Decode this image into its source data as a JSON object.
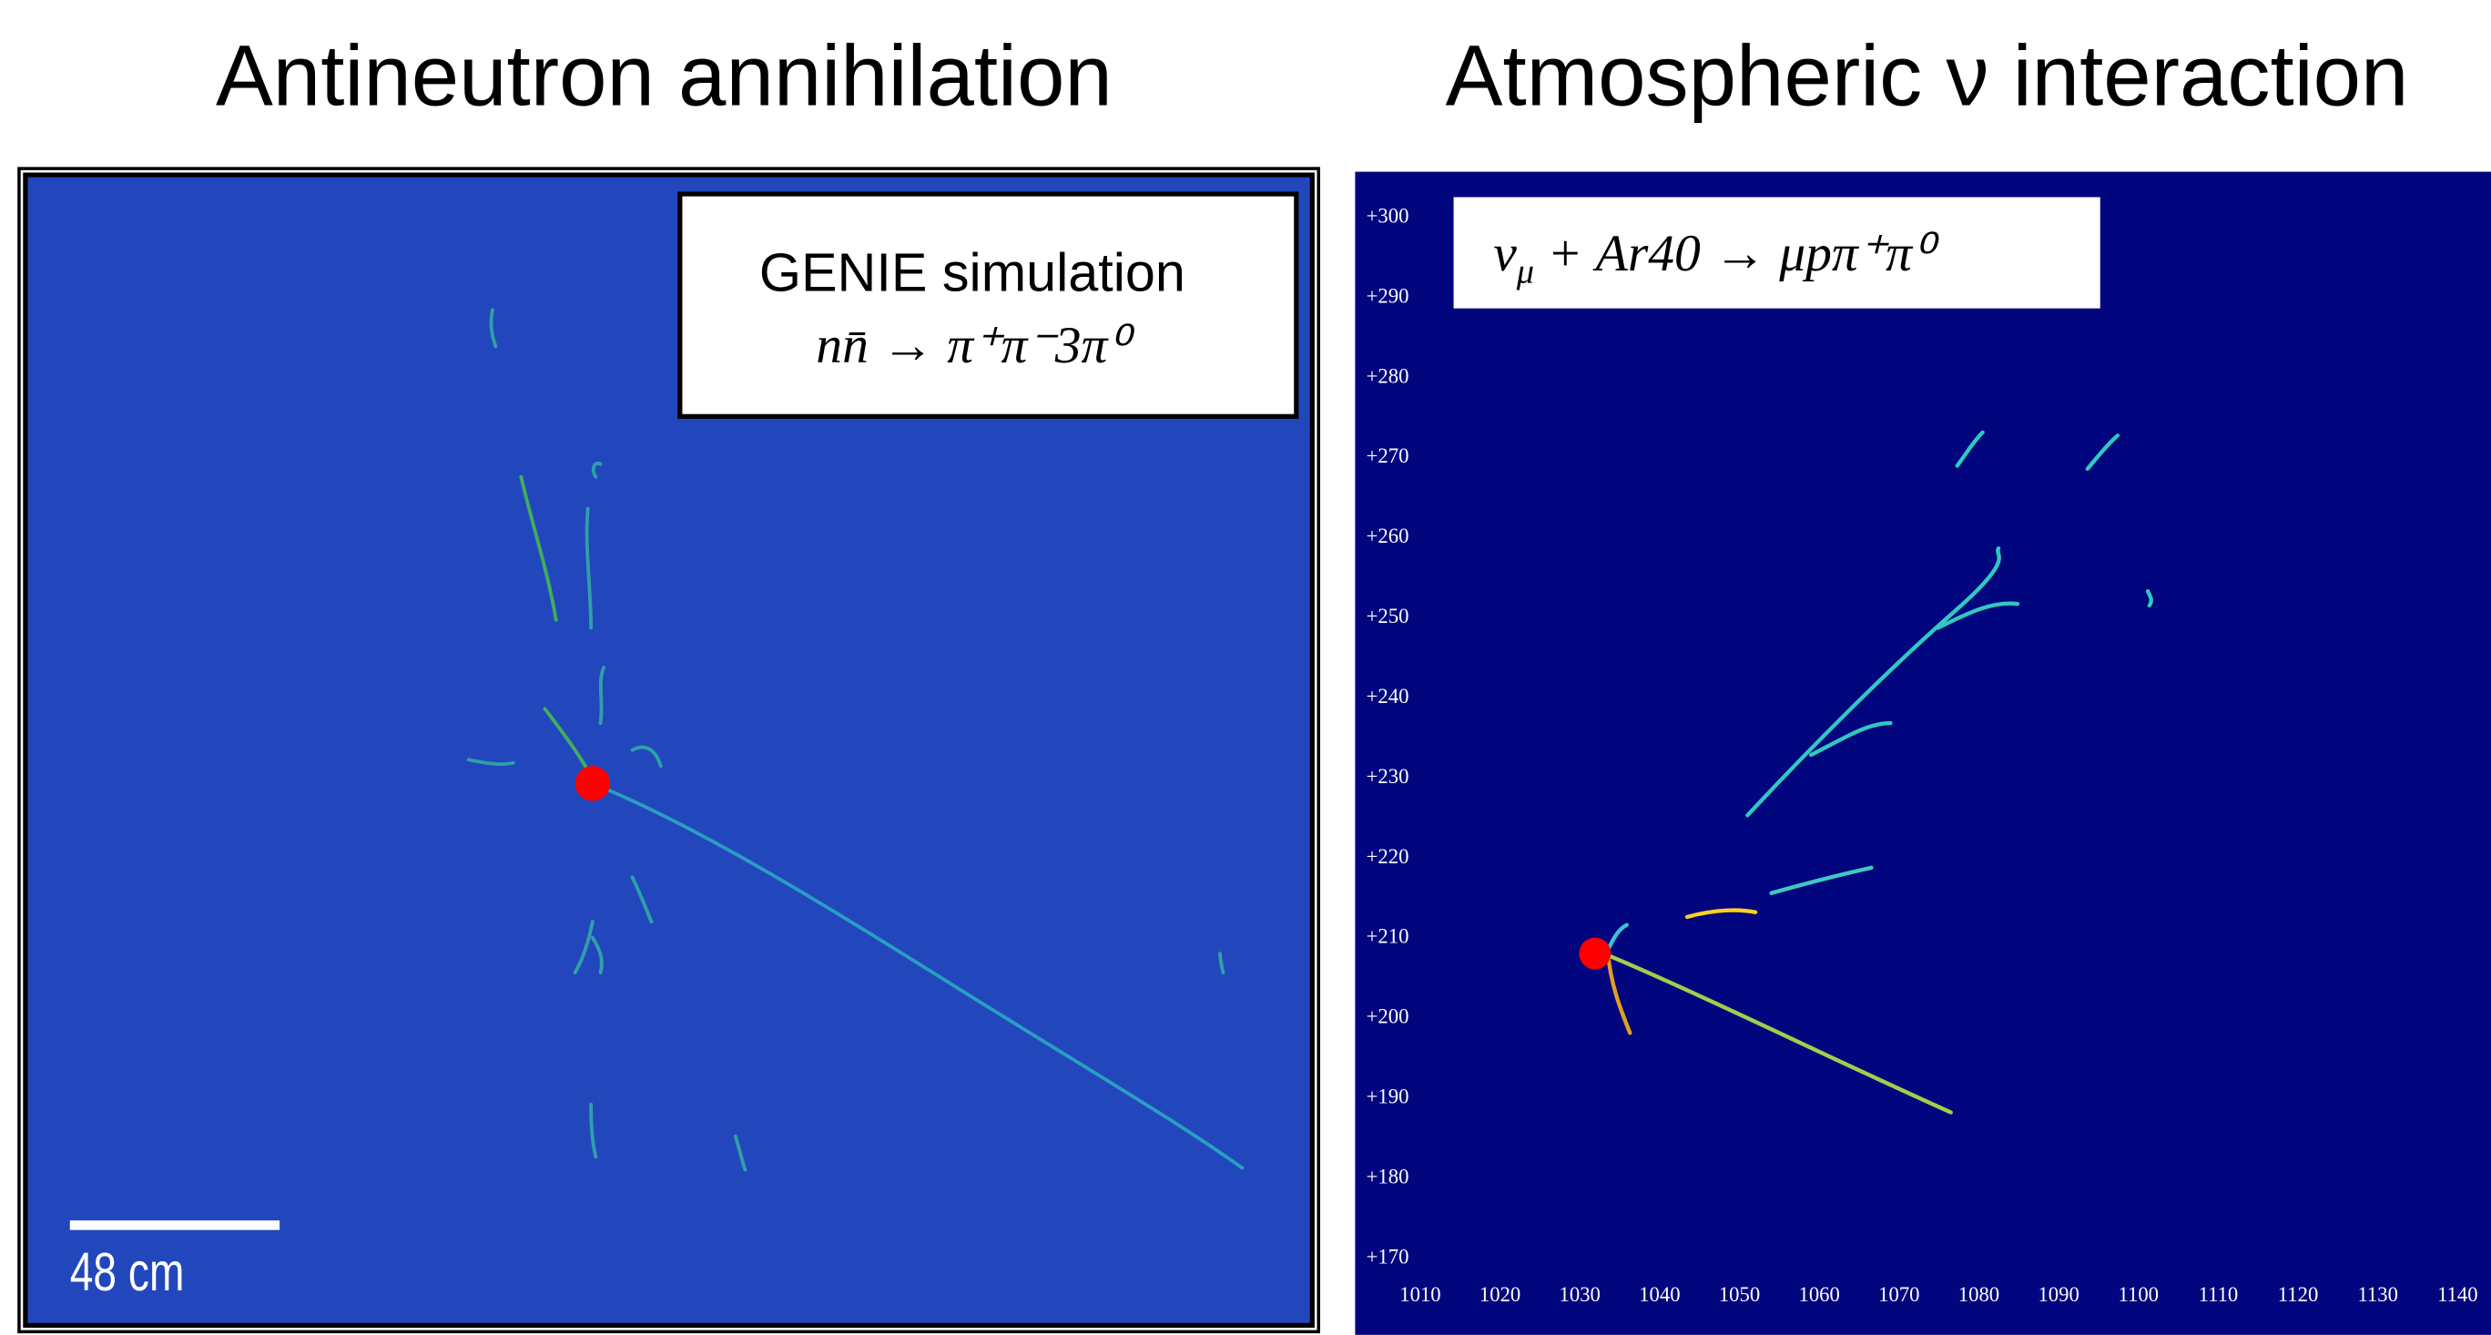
{
  "left_panel": {
    "title": "Antineutron annihilation",
    "label_line1": "GENIE simulation",
    "label_line2": "nn̄ → π⁺π⁻3π⁰",
    "scale_bar": "48 cm"
  },
  "right_panel": {
    "title": "Atmospheric ν interaction",
    "label_main": "ν",
    "label_sub": "μ",
    "label_rest": " + Ar40 → μpπ⁺π⁰",
    "yticks": [
      {
        "value": 300,
        "label": "+300"
      },
      {
        "value": 290,
        "label": "+290"
      },
      {
        "value": 280,
        "label": "+280"
      },
      {
        "value": 270,
        "label": "+270"
      },
      {
        "value": 260,
        "label": "+260"
      },
      {
        "value": 250,
        "label": "+250"
      },
      {
        "value": 240,
        "label": "+240"
      },
      {
        "value": 230,
        "label": "+230"
      },
      {
        "value": 220,
        "label": "+220"
      },
      {
        "value": 210,
        "label": "+210"
      },
      {
        "value": 200,
        "label": "+200"
      },
      {
        "value": 190,
        "label": "+190"
      },
      {
        "value": 180,
        "label": "+180"
      },
      {
        "value": 170,
        "label": "+170"
      }
    ],
    "xticks": [
      1010,
      1020,
      1030,
      1040,
      1050,
      1060,
      1070,
      1080,
      1090,
      1100,
      1110,
      1120,
      1130,
      1140
    ]
  }
}
